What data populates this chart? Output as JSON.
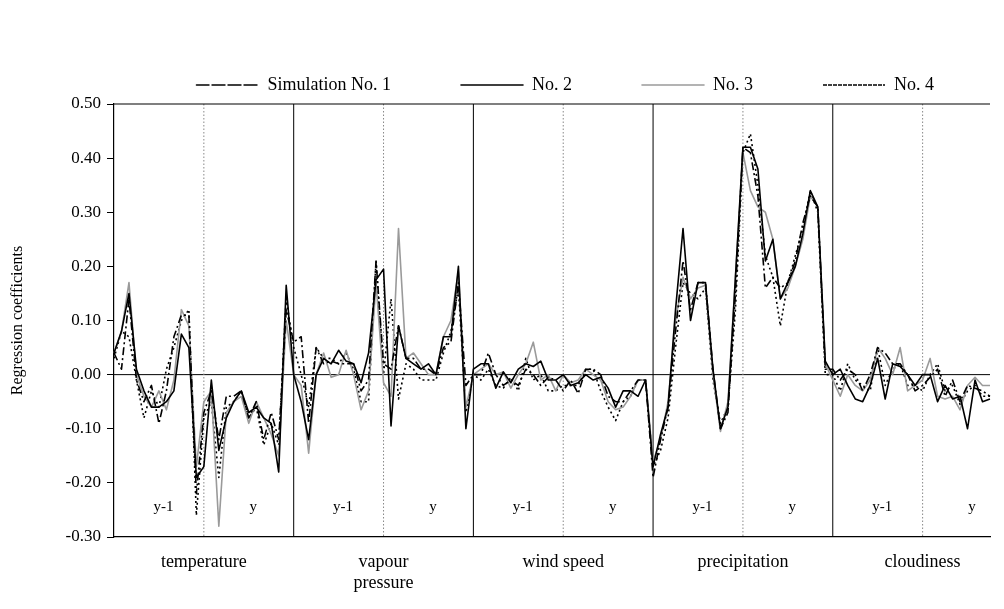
{
  "chart_data": {
    "type": "line",
    "ylabel": "Regression coefficients",
    "legend": "top",
    "grid": "x",
    "marker": "none",
    "categories": [
      null,
      null,
      null,
      null,
      null,
      null,
      null,
      null,
      null,
      null,
      null,
      null,
      "temperature",
      null,
      null,
      null,
      null,
      null,
      null,
      null,
      null,
      null,
      null,
      null,
      null,
      null,
      null,
      null,
      null,
      null,
      null,
      null,
      null,
      null,
      null,
      null,
      "vapour pressure",
      null,
      null,
      null,
      null,
      null,
      null,
      null,
      null,
      null,
      null,
      null,
      null,
      null,
      null,
      null,
      null,
      null,
      null,
      null,
      null,
      null,
      null,
      null,
      "wind speed",
      null,
      null,
      null,
      null,
      null,
      null,
      null,
      null,
      null,
      null,
      null,
      null,
      null,
      null,
      null,
      null,
      null,
      null,
      null,
      null,
      null,
      null,
      null,
      "precipitation",
      null,
      null,
      null,
      null,
      null,
      null,
      null,
      null,
      null,
      null,
      null,
      null,
      null,
      null,
      null,
      null,
      null,
      null,
      null,
      null,
      null,
      null,
      null,
      "cloudiness",
      null,
      null,
      null,
      null,
      null,
      null,
      null,
      null,
      null
    ],
    "ylim": [
      -0.3,
      0.5
    ],
    "yticks": [
      {
        "value": -0.3,
        "label": "-0.30"
      },
      {
        "value": -0.2,
        "label": "-0.20"
      },
      {
        "value": -0.1,
        "label": "-0.10"
      },
      {
        "value": 0,
        "label": "0.00"
      },
      {
        "value": 0.1,
        "label": "0.10"
      },
      {
        "value": 0.2,
        "label": "0.20"
      },
      {
        "value": 0.3,
        "label": "0.30"
      },
      {
        "value": 0.4,
        "label": "0.40"
      },
      {
        "value": 0.5,
        "label": "0.50"
      }
    ],
    "series": [
      {
        "name": "Simulation No. 1",
        "color": "#000000",
        "line_style": "dashed",
        "values": [
          0.04,
          0.01,
          0.14,
          -0.01,
          -0.05,
          -0.02,
          -0.09,
          -0.03,
          0.07,
          0.11,
          0.11,
          -0.22,
          -0.07,
          -0.03,
          -0.12,
          -0.04,
          -0.04,
          -0.03,
          -0.08,
          -0.05,
          -0.12,
          -0.07,
          -0.12,
          0.12,
          0.06,
          0.07,
          -0.09,
          0.05,
          0.02,
          0.025,
          0.02,
          0.02,
          0.02,
          -0.03,
          -0.01,
          0.21,
          0.02,
          0.01,
          0.09,
          0.03,
          0.03,
          0.01,
          0.01,
          0.0,
          0.05,
          0.06,
          0.17,
          -0.02,
          0.0,
          0.0,
          0.04,
          0.0,
          -0.02,
          -0.01,
          -0.02,
          0.01,
          0.0,
          -0.02,
          -0.005,
          -0.01,
          -0.03,
          -0.01,
          -0.035,
          0.01,
          0.01,
          0.0,
          -0.04,
          -0.05,
          -0.05,
          -0.03,
          -0.01,
          -0.01,
          -0.19,
          -0.12,
          -0.06,
          0.08,
          0.21,
          0.12,
          0.17,
          0.17,
          0.01,
          -0.1,
          -0.07,
          0.15,
          0.42,
          0.41,
          0.33,
          0.16,
          0.18,
          0.16,
          0.17,
          0.21,
          0.28,
          0.33,
          0.31,
          0.01,
          0.01,
          -0.01,
          0.01,
          0.0,
          -0.03,
          0.0,
          0.05,
          0.04,
          0.02,
          0.02,
          0.0,
          -0.03,
          -0.02,
          -0.005,
          0.01,
          -0.04,
          -0.01,
          -0.05,
          -0.02,
          -0.025,
          -0.03,
          -0.04
        ]
      },
      {
        "name": "No. 2",
        "color": "#000000",
        "line_style": "solid",
        "values": [
          0.04,
          0.08,
          0.15,
          0.01,
          -0.03,
          -0.06,
          -0.06,
          -0.05,
          -0.03,
          0.075,
          0.05,
          -0.19,
          -0.17,
          -0.01,
          -0.14,
          -0.08,
          -0.05,
          -0.03,
          -0.07,
          -0.06,
          -0.08,
          -0.09,
          -0.18,
          0.165,
          0.0,
          -0.05,
          -0.12,
          0.0,
          0.03,
          0.02,
          0.045,
          0.025,
          0.02,
          -0.015,
          0.04,
          0.175,
          0.195,
          -0.095,
          0.09,
          0.03,
          0.02,
          0.01,
          0.02,
          0.0,
          0.07,
          0.07,
          0.2,
          -0.1,
          0.01,
          0.02,
          0.02,
          -0.025,
          0.005,
          -0.015,
          0.01,
          0.02,
          0.015,
          0.025,
          -0.01,
          -0.01,
          0.0,
          -0.02,
          -0.015,
          0.0,
          -0.01,
          -0.005,
          -0.025,
          -0.06,
          -0.03,
          -0.03,
          -0.04,
          -0.01,
          -0.17,
          -0.11,
          -0.06,
          0.12,
          0.27,
          0.1,
          0.17,
          0.17,
          0.01,
          -0.1,
          -0.06,
          0.18,
          0.42,
          0.42,
          0.38,
          0.21,
          0.25,
          0.14,
          0.17,
          0.2,
          0.26,
          0.34,
          0.31,
          0.025,
          0.0,
          0.01,
          -0.02,
          -0.045,
          -0.05,
          -0.02,
          0.03,
          -0.045,
          0.02,
          0.015,
          0.0,
          -0.02,
          0.0,
          0.0,
          -0.05,
          -0.02,
          -0.045,
          -0.04,
          -0.1,
          -0.01,
          -0.05,
          -0.045
        ]
      },
      {
        "name": "No. 3",
        "color": "#9a9a9a",
        "line_style": "solid",
        "values": [
          0.04,
          0.08,
          0.17,
          0.0,
          -0.04,
          -0.06,
          -0.03,
          -0.065,
          -0.01,
          0.12,
          0.09,
          -0.17,
          -0.05,
          -0.03,
          -0.28,
          -0.07,
          -0.05,
          -0.04,
          -0.09,
          -0.05,
          -0.08,
          -0.11,
          -0.15,
          0.1,
          0.0,
          -0.02,
          -0.145,
          0.0,
          0.04,
          -0.005,
          0.0,
          0.045,
          0.0,
          -0.065,
          -0.03,
          0.17,
          -0.015,
          -0.04,
          0.27,
          0.03,
          0.04,
          0.02,
          0.0,
          0.0,
          0.07,
          0.1,
          0.19,
          -0.06,
          0.0,
          0.01,
          0.02,
          0.0,
          0.005,
          -0.025,
          0.0,
          0.02,
          0.06,
          -0.01,
          0.0,
          -0.03,
          0.0,
          -0.015,
          -0.01,
          0.01,
          0.0,
          -0.01,
          -0.05,
          -0.065,
          -0.06,
          -0.04,
          -0.01,
          -0.01,
          -0.16,
          -0.12,
          -0.05,
          0.1,
          0.18,
          0.14,
          0.16,
          0.165,
          0.0,
          -0.105,
          -0.05,
          0.18,
          0.41,
          0.34,
          0.31,
          0.3,
          0.25,
          0.14,
          0.16,
          0.2,
          0.25,
          0.33,
          0.31,
          0.02,
          -0.01,
          -0.04,
          0.0,
          -0.02,
          -0.03,
          -0.01,
          0.05,
          0.03,
          0.0,
          0.05,
          -0.03,
          -0.02,
          -0.01,
          0.03,
          -0.04,
          -0.045,
          -0.04,
          -0.065,
          -0.02,
          -0.005,
          -0.02,
          -0.02
        ]
      },
      {
        "name": "No. 4",
        "color": "#000000",
        "line_style": "dotted",
        "values": [
          0.03,
          0.08,
          0.07,
          -0.01,
          -0.08,
          -0.03,
          -0.06,
          0.01,
          0.05,
          0.1,
          0.12,
          -0.26,
          -0.08,
          -0.05,
          -0.19,
          -0.06,
          -0.05,
          -0.03,
          -0.08,
          -0.06,
          -0.13,
          -0.09,
          -0.13,
          0.14,
          0.05,
          0.0,
          -0.06,
          0.05,
          0.03,
          0.03,
          0.02,
          0.04,
          0.01,
          -0.05,
          -0.05,
          0.21,
          0.0,
          0.14,
          -0.045,
          0.02,
          0.01,
          -0.01,
          -0.01,
          -0.01,
          0.04,
          0.08,
          0.16,
          -0.07,
          0.0,
          -0.01,
          0.01,
          -0.02,
          -0.025,
          -0.005,
          -0.03,
          0.03,
          -0.01,
          0.0,
          -0.03,
          -0.03,
          -0.02,
          -0.02,
          -0.02,
          0.01,
          0.01,
          -0.03,
          -0.06,
          -0.085,
          -0.05,
          -0.04,
          -0.01,
          -0.01,
          -0.17,
          -0.14,
          -0.08,
          0.05,
          0.17,
          0.15,
          0.14,
          0.16,
          -0.01,
          -0.09,
          -0.06,
          0.12,
          0.41,
          0.445,
          0.35,
          0.22,
          0.18,
          0.09,
          0.17,
          0.22,
          0.27,
          0.34,
          0.3,
          0.0,
          0.0,
          -0.03,
          0.02,
          -0.01,
          -0.02,
          -0.03,
          0.05,
          -0.02,
          0.01,
          0.02,
          -0.02,
          -0.02,
          -0.03,
          0.0,
          0.02,
          -0.03,
          -0.02,
          -0.055,
          -0.03,
          -0.02,
          -0.04,
          -0.04
        ]
      }
    ],
    "ref_lines": [
      {
        "axis": "y",
        "value": 0,
        "color": "#000000",
        "line_style": "solid"
      }
    ],
    "annotations": [
      "y-1",
      "y",
      "y-1",
      "y",
      "y-1",
      "y",
      "y-1",
      "y",
      "y-1",
      "y"
    ]
  }
}
